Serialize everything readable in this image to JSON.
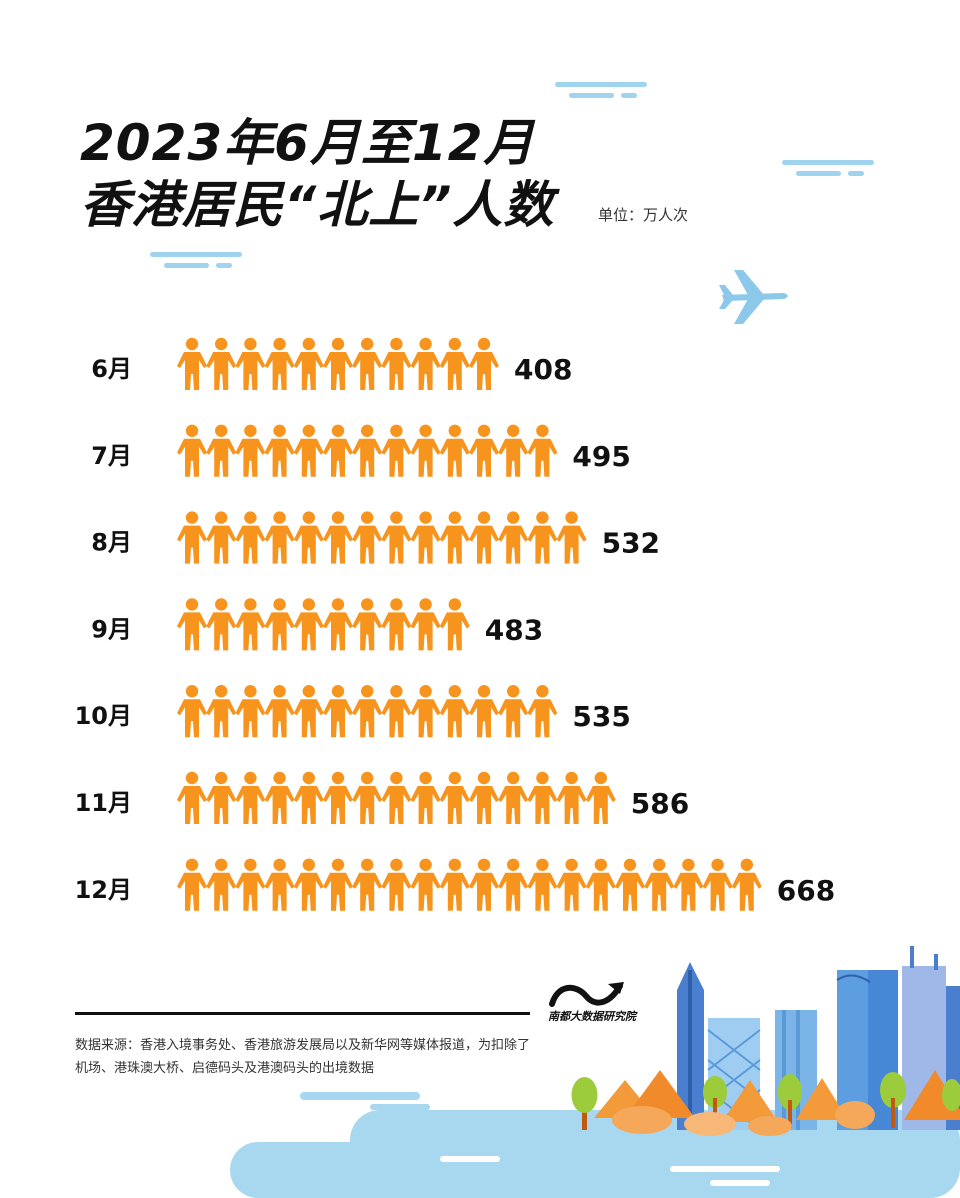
{
  "header": {
    "title_line1": "2023年6月至12月",
    "title_line2": "香港居民“北上”人数",
    "unit": "单位：万人次"
  },
  "footer": {
    "logo_text": "南都大数据研究院",
    "source_line1": "数据来源：香港入境事务处、香港旅游发展局以及新华网等媒体报道，为扣除了",
    "source_line2": "机场、港珠澳大桥、启德码头及港澳码头的出境数据"
  },
  "colors": {
    "icon": "#f7941d",
    "text": "#111111",
    "accent_cloud": "#9fd3ee"
  },
  "icons": {
    "person": "person-icon",
    "plane": "airplane-icon"
  },
  "chart_data": {
    "type": "bar",
    "orientation": "horizontal",
    "pictogram": "person-icon",
    "categories": [
      "6月",
      "7月",
      "8月",
      "9月",
      "10月",
      "11月",
      "12月"
    ],
    "values": [
      408,
      495,
      532,
      483,
      535,
      586,
      668
    ],
    "icon_counts": [
      11,
      13,
      14,
      10,
      13,
      15,
      20
    ],
    "title": "2023年6月至12月 香港居民“北上”人数",
    "unit": "单位：万人次"
  }
}
